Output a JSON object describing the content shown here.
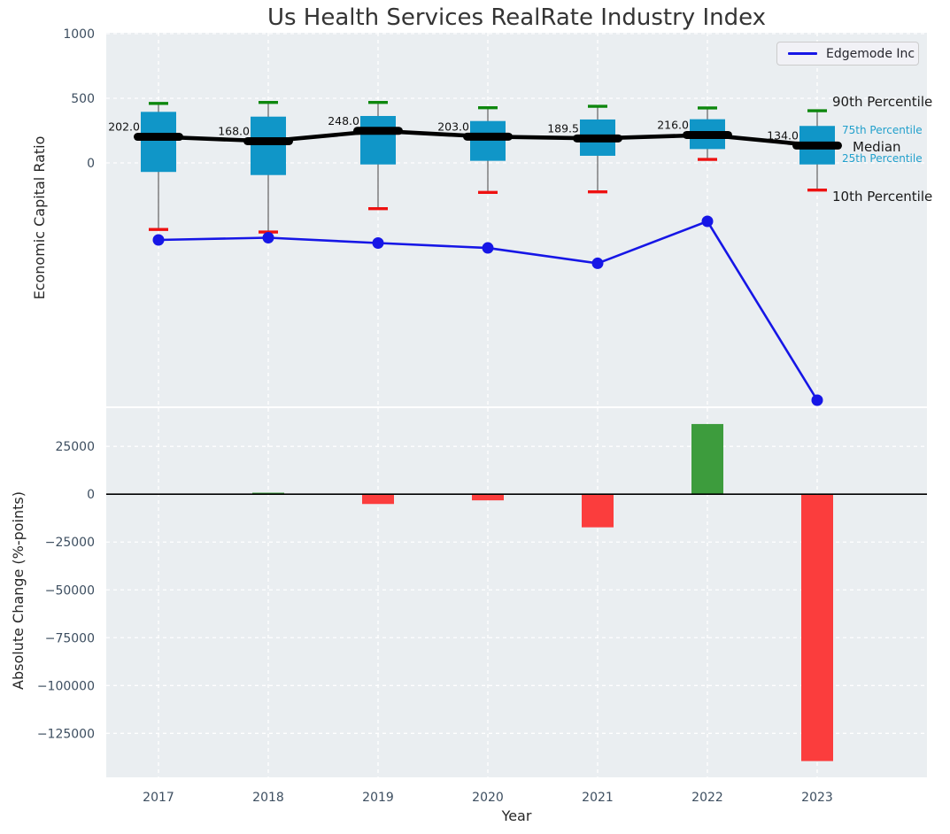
{
  "title": "Us Health Services RealRate Industry Index",
  "legend": {
    "label": "Edgemode Inc"
  },
  "annotations": {
    "p90": "90th Percentile",
    "p75": "75th Percentile",
    "median": "Median",
    "p25": "25th Percentile",
    "p10": "10th Percentile"
  },
  "colors": {
    "panel_bg": "#eaeef1",
    "grid": "#ffffff",
    "box_fill": "#1096c8",
    "whisker": "#6b6b6b",
    "cap_90": "#0d870d",
    "cap_10": "#ee1111",
    "median": "#000000",
    "edgemode_line": "#1616e6",
    "bar_positive": "#3d9c3d",
    "bar_negative": "#fb3d3d",
    "zero_line": "#000000",
    "tick_text": "#3d4e60",
    "median_label_text": "#111111"
  },
  "chart_data": [
    {
      "type": "boxplot",
      "panel": "top",
      "title": "Us Health Services RealRate Industry Index",
      "ylabel": "Economic Capital Ratio",
      "categories": [
        "2017",
        "2018",
        "2019",
        "2020",
        "2021",
        "2022",
        "2023"
      ],
      "ylim": [
        -1884,
        1007
      ],
      "ytick_values": [
        0,
        500,
        1000
      ],
      "ytick_labels": [
        "0",
        "500",
        "1000"
      ],
      "grid": true,
      "legend_position": "upper right",
      "boxes": [
        {
          "year": "2017",
          "p90": 460,
          "p75": 395,
          "median": 202.0,
          "p25": -70,
          "p10": -515,
          "label": "202.0"
        },
        {
          "year": "2018",
          "p90": 468,
          "p75": 358,
          "median": 168.0,
          "p25": -94,
          "p10": -535,
          "label": "168.0"
        },
        {
          "year": "2019",
          "p90": 468,
          "p75": 363,
          "median": 248.0,
          "p25": -12,
          "p10": -354,
          "label": "248.0"
        },
        {
          "year": "2020",
          "p90": 427,
          "p75": 324,
          "median": 203.0,
          "p25": 16,
          "p10": -228,
          "label": "203.0"
        },
        {
          "year": "2021",
          "p90": 438,
          "p75": 336,
          "median": 189.5,
          "p25": 55,
          "p10": -224,
          "label": "189.5"
        },
        {
          "year": "2022",
          "p90": 425,
          "p75": 338,
          "median": 216.0,
          "p25": 107,
          "p10": 27,
          "label": "216.0"
        },
        {
          "year": "2023",
          "p90": 404,
          "p75": 286,
          "median": 134.0,
          "p25": -12,
          "p10": -210,
          "label": "134.0"
        }
      ],
      "series": [
        {
          "name": "Edgemode Inc",
          "values": [
            -596,
            -579,
            -620,
            -658,
            -777,
            -452,
            -1836
          ]
        }
      ]
    },
    {
      "type": "bar",
      "panel": "bottom",
      "ylabel": "Absolute Change (%-points)",
      "xlabel": "Year",
      "categories": [
        "2017",
        "2018",
        "2019",
        "2020",
        "2021",
        "2022",
        "2023"
      ],
      "values": [
        null,
        800,
        -5100,
        -3200,
        -17300,
        36700,
        -139500
      ],
      "ylim": [
        -148000,
        45000
      ],
      "ytick_values": [
        25000,
        0,
        -25000,
        -50000,
        -75000,
        -100000,
        -125000
      ],
      "ytick_labels": [
        "25000",
        "0",
        "−25000",
        "−50000",
        "−75000",
        "−100000",
        "−125000"
      ],
      "grid": true
    }
  ]
}
